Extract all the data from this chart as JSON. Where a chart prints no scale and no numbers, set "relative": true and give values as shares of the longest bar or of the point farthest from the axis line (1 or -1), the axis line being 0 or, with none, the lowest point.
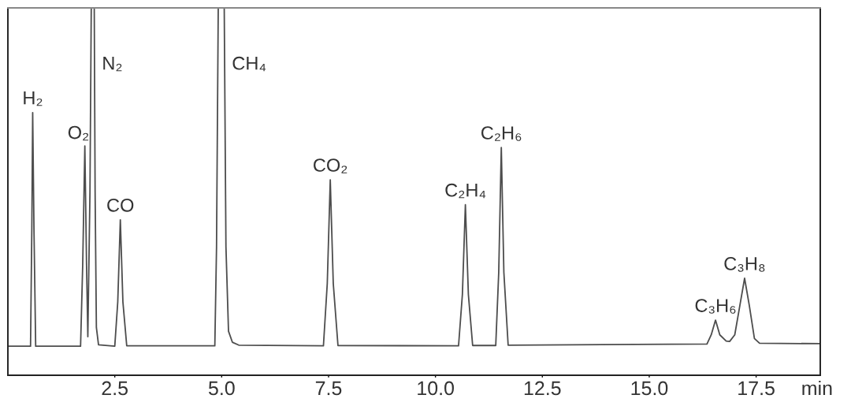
{
  "chart_data": {
    "type": "line",
    "relative": true,
    "xlabel": "min",
    "x": [
      0.0,
      0.53,
      0.56,
      0.58,
      0.61,
      0.65,
      1.7,
      1.75,
      1.8,
      1.84,
      1.87,
      1.92,
      1.95,
      2.02,
      2.04,
      2.07,
      2.12,
      2.5,
      2.57,
      2.63,
      2.69,
      2.78,
      4.84,
      4.88,
      4.92,
      5.06,
      5.1,
      5.16,
      5.25,
      5.4,
      7.38,
      7.47,
      7.54,
      7.61,
      7.72,
      10.54,
      10.63,
      10.7,
      10.77,
      10.87,
      11.41,
      11.48,
      11.54,
      11.6,
      11.7,
      16.35,
      16.45,
      16.55,
      16.65,
      16.8,
      16.88,
      17.0,
      17.12,
      17.23,
      17.34,
      17.46,
      17.58,
      19.0
    ],
    "series": [
      {
        "color": "#4d4d4d",
        "values": [
          0.079,
          0.079,
          0.4,
          0.715,
          0.4,
          0.079,
          0.079,
          0.3,
          0.624,
          0.3,
          0.105,
          0.5,
          1.0,
          1.0,
          0.5,
          0.13,
          0.083,
          0.079,
          0.2,
          0.423,
          0.2,
          0.08,
          0.08,
          0.35,
          1.0,
          1.0,
          0.35,
          0.12,
          0.09,
          0.082,
          0.08,
          0.25,
          0.532,
          0.25,
          0.081,
          0.08,
          0.22,
          0.464,
          0.22,
          0.081,
          0.081,
          0.28,
          0.62,
          0.28,
          0.082,
          0.085,
          0.11,
          0.15,
          0.11,
          0.093,
          0.092,
          0.11,
          0.19,
          0.264,
          0.19,
          0.1,
          0.087,
          0.086
        ]
      }
    ],
    "xlim": [
      0,
      19
    ],
    "xticks": [
      2.5,
      {
        "value": 5,
        "label": "5.0"
      },
      7.5,
      {
        "value": 10,
        "label": "10.0"
      },
      12.5,
      {
        "value": 15,
        "label": "15.0"
      },
      17.5
    ],
    "annotations": [
      {
        "text": "H₂",
        "x": 0.58,
        "y": 0.715
      },
      {
        "text": "O₂",
        "x": 1.8,
        "y": 0.624
      },
      {
        "text": "N₂",
        "x": 2.02,
        "y": 0.845
      },
      {
        "text": "CO",
        "x": 2.63,
        "y": 0.423
      },
      {
        "text": "CH₄",
        "x": 5.06,
        "y": 0.845
      },
      {
        "text": "CO₂",
        "x": 7.54,
        "y": 0.532
      },
      {
        "text": "C₂H₄",
        "x": 10.7,
        "y": 0.464
      },
      {
        "text": "C₂H₆",
        "x": 11.54,
        "y": 0.62
      },
      {
        "text": "C₃H₆",
        "x": 16.55,
        "y": 0.15
      },
      {
        "text": "C₃H₈",
        "x": 17.23,
        "y": 0.264
      }
    ]
  }
}
